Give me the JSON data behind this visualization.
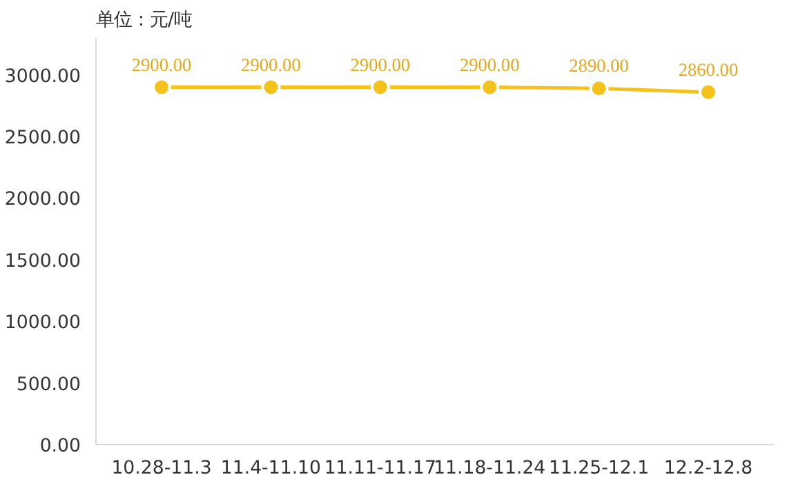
{
  "chart_data": {
    "type": "line",
    "ylabel": "单位：元/吨",
    "categories": [
      "10.28-11.3",
      "11.4-11.10",
      "11.11-11.17",
      "11.18-11.24",
      "11.25-12.1",
      "12.2-12.8"
    ],
    "series": [
      {
        "color": "#f5c21b",
        "values": [
          2900,
          2900,
          2900,
          2900,
          2890,
          2860
        ],
        "value_labels": [
          "2900.00",
          "2900.00",
          "2900.00",
          "2900.00",
          "2890.00",
          "2860.00"
        ]
      }
    ],
    "ylim": [
      0,
      3300
    ],
    "yticks": [
      {
        "value": 0,
        "label": "0.00"
      },
      {
        "value": 500,
        "label": "500.00"
      },
      {
        "value": 1000,
        "label": "1000.00"
      },
      {
        "value": 1500,
        "label": "1500.00"
      },
      {
        "value": 2000,
        "label": "2000.00"
      },
      {
        "value": 2500,
        "label": "2500.00"
      },
      {
        "value": 3000,
        "label": "3000.00"
      }
    ],
    "marker": "circle",
    "line_style": "solid",
    "grid": false
  }
}
